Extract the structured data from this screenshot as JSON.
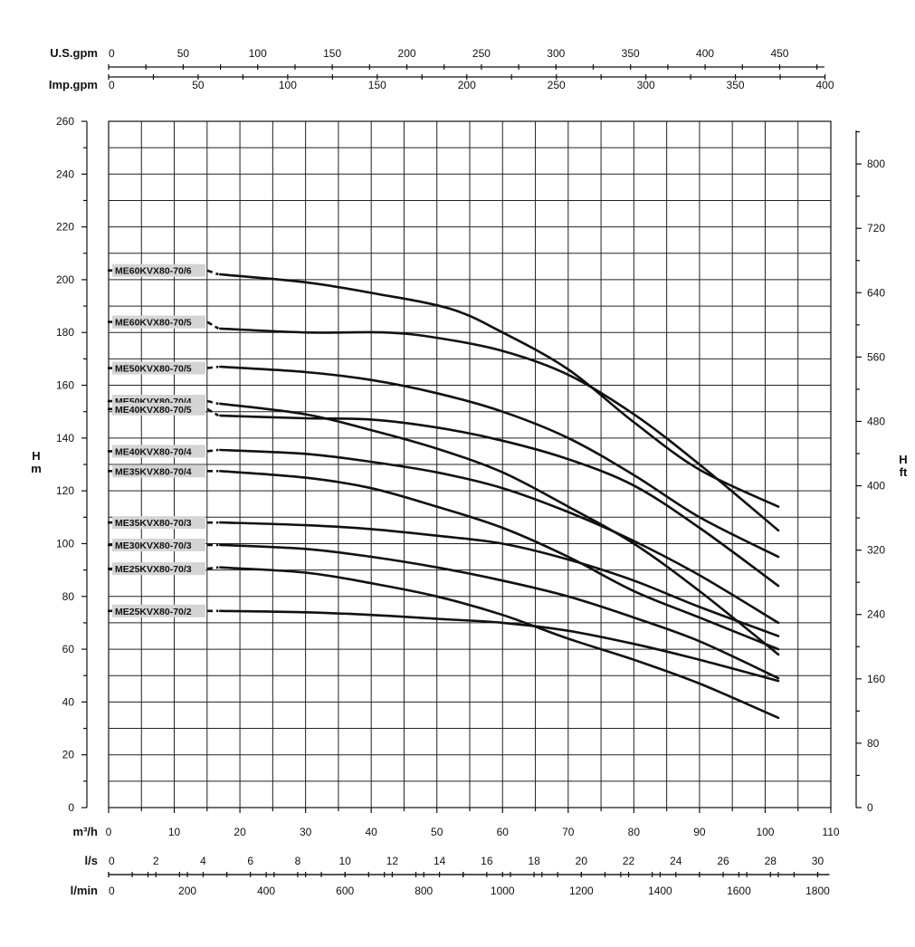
{
  "chart_data": {
    "type": "line",
    "x_axis": {
      "name": "m³/h",
      "min": 0,
      "max": 110,
      "ticks": [
        0,
        10,
        20,
        30,
        40,
        50,
        60,
        70,
        80,
        90,
        100,
        110
      ]
    },
    "y_axis": {
      "name_top": "H",
      "name_bottom": "m",
      "min": 0,
      "max": 260,
      "ticks": [
        0,
        20,
        40,
        60,
        80,
        100,
        120,
        140,
        160,
        180,
        200,
        220,
        240,
        260
      ]
    },
    "y2_axis": {
      "name_top": "H",
      "name_bottom": "ft",
      "ticks": [
        0,
        80,
        160,
        240,
        320,
        400,
        480,
        560,
        640,
        720,
        800
      ]
    },
    "top_axes": [
      {
        "name": "U.S.gpm",
        "ticks": [
          0,
          50,
          100,
          150,
          200,
          250,
          300,
          350,
          400,
          450
        ]
      },
      {
        "name": "Imp.gpm",
        "ticks": [
          0,
          50,
          100,
          150,
          200,
          250,
          300,
          350,
          400
        ]
      }
    ],
    "bottom_axes": [
      {
        "name": "l/s",
        "ticks": [
          0,
          2,
          4,
          6,
          8,
          10,
          12,
          14,
          16,
          18,
          20,
          22,
          24,
          26,
          28,
          30
        ]
      },
      {
        "name": "l/min",
        "ticks": [
          0,
          200,
          400,
          600,
          800,
          1000,
          1200,
          1400,
          1600,
          1800
        ]
      }
    ],
    "grid": true,
    "series": [
      {
        "name": "ME60KVX80-70/6",
        "label_y": 203.5,
        "x": [
          17,
          30,
          40,
          52,
          60,
          70,
          80,
          90,
          102
        ],
        "y": [
          202,
          199,
          195,
          189,
          180,
          166,
          146,
          128,
          114
        ]
      },
      {
        "name": "ME60KVX80-70/5",
        "label_y": 184,
        "x": [
          17,
          30,
          42,
          50,
          60,
          70,
          80,
          90,
          102
        ],
        "y": [
          181.5,
          180,
          180,
          178,
          173,
          164,
          149,
          130,
          105
        ]
      },
      {
        "name": "ME50KVX80-70/5",
        "label_y": 166.5,
        "x": [
          17,
          30,
          40,
          50,
          60,
          70,
          80,
          90,
          102
        ],
        "y": [
          167,
          165,
          162,
          157,
          150,
          140,
          126,
          110,
          95
        ]
      },
      {
        "name": "ME50KVX80-70/4",
        "label_y": 154,
        "x": [
          17,
          30,
          40,
          50,
          60,
          70,
          80,
          90,
          102
        ],
        "y": [
          153,
          149,
          143,
          136,
          127,
          114,
          100,
          82,
          58
        ]
      },
      {
        "name": "ME40KVX80-70/5",
        "label_y": 151,
        "x": [
          17,
          30,
          40,
          50,
          60,
          70,
          80,
          90,
          102
        ],
        "y": [
          148.5,
          147.5,
          147,
          144,
          139,
          132,
          122,
          106,
          84
        ]
      },
      {
        "name": "ME40KVX80-70/4",
        "label_y": 135,
        "x": [
          17,
          30,
          40,
          50,
          60,
          70,
          80,
          90,
          102
        ],
        "y": [
          135.5,
          134,
          131,
          127,
          121,
          112,
          101,
          88,
          70
        ]
      },
      {
        "name": "ME35KVX80-70/4",
        "label_y": 127.5,
        "x": [
          17,
          30,
          40,
          50,
          60,
          70,
          80,
          90,
          102
        ],
        "y": [
          127.5,
          125,
          121,
          114,
          106,
          95,
          82,
          72,
          60
        ]
      },
      {
        "name": "ME35KVX80-70/3",
        "label_y": 108,
        "x": [
          17,
          30,
          40,
          50,
          60,
          70,
          80,
          90,
          102
        ],
        "y": [
          108,
          107,
          105.5,
          103,
          100,
          94,
          86,
          76,
          65
        ]
      },
      {
        "name": "ME30KVX80-70/3",
        "label_y": 99.5,
        "x": [
          17,
          30,
          40,
          50,
          60,
          70,
          80,
          90,
          102
        ],
        "y": [
          99.5,
          98,
          95,
          91,
          86,
          80,
          72,
          63,
          49
        ]
      },
      {
        "name": "ME25KVX80-70/3",
        "label_y": 90.5,
        "x": [
          17,
          30,
          40,
          50,
          60,
          70,
          80,
          90,
          102
        ],
        "y": [
          91,
          89,
          85,
          80,
          73,
          64,
          56,
          47,
          34
        ]
      },
      {
        "name": "ME25KVX80-70/2",
        "label_y": 74.5,
        "x": [
          17,
          30,
          40,
          50,
          60,
          70,
          80,
          90,
          102
        ],
        "y": [
          74.5,
          74,
          73,
          71.5,
          70,
          67,
          62,
          56,
          48
        ]
      }
    ]
  }
}
